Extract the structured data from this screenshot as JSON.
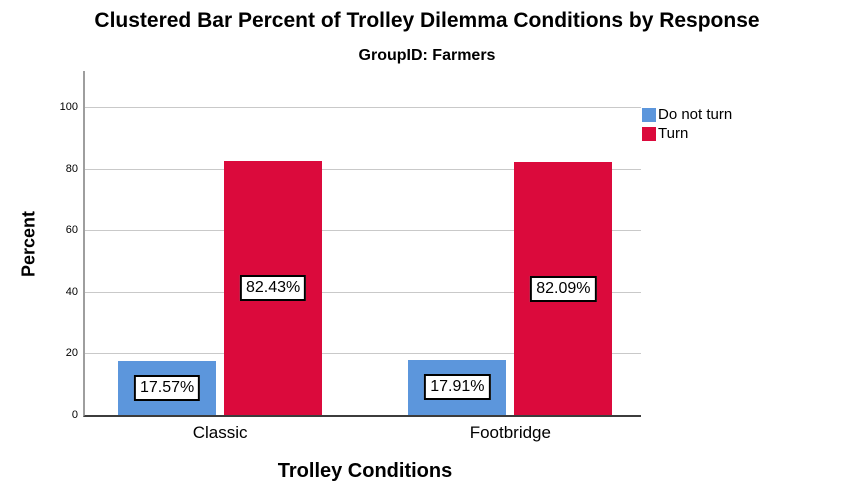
{
  "chart_data": {
    "type": "bar",
    "title": "Clustered Bar Percent of Trolley Dilemma Conditions by Response",
    "subtitle": "GroupID: Farmers",
    "xlabel": "Trolley Conditions",
    "ylabel": "Percent",
    "categories": [
      "Classic",
      "Footbridge"
    ],
    "series": [
      {
        "name": "Do not turn",
        "color": "#5c96dc",
        "values": [
          17.57,
          17.91
        ],
        "labels": [
          "17.57%",
          "17.91%"
        ]
      },
      {
        "name": "Turn",
        "color": "#db0a3c",
        "values": [
          82.43,
          82.09
        ],
        "labels": [
          "82.43%",
          "82.09%"
        ]
      }
    ],
    "ylim": [
      0,
      100
    ],
    "yticks": [
      0,
      20,
      40,
      60,
      80,
      100
    ],
    "grid": true,
    "legend_position": "top-right",
    "colors": {
      "grid": "#c9c9c9",
      "y_axis": "#9e9e9e",
      "x_axis": "#3c3c3c",
      "background": "#ffffff"
    }
  }
}
